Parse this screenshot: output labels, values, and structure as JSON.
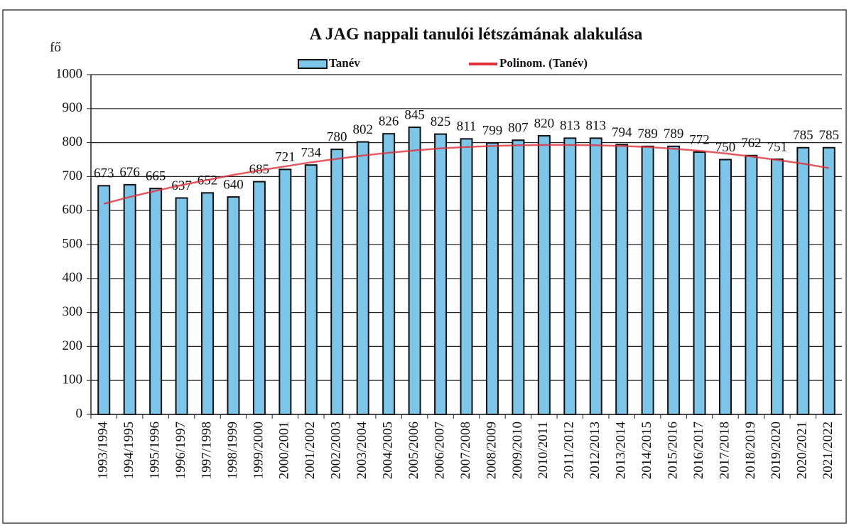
{
  "chart_data": {
    "type": "bar",
    "title": "A JAG nappali tanulói létszámának alakulása",
    "ylabel": "fő",
    "categories": [
      "1993/1994",
      "1994/1995",
      "1995/1996",
      "1996/1997",
      "1997/1998",
      "1998/1999",
      "1999/2000",
      "2000/2001",
      "2001/2002",
      "2002/2003",
      "2003/2004",
      "2004/2005",
      "2005/2006",
      "2006/2007",
      "2007/2008",
      "2008/2009",
      "2009/2010",
      "2010/2011",
      "2011/2012",
      "2012/2013",
      "2013/2014",
      "2014/2015",
      "2015/2016",
      "2016/2017",
      "2017/2018",
      "2018/2019",
      "2019/2020",
      "2020/2021",
      "2021/2022"
    ],
    "series": [
      {
        "name": "Tanév",
        "type": "bar",
        "color": "#7cc6ea",
        "values": [
          673,
          676,
          665,
          637,
          652,
          640,
          685,
          721,
          734,
          780,
          802,
          826,
          845,
          825,
          811,
          799,
          807,
          820,
          813,
          813,
          794,
          789,
          789,
          772,
          750,
          762,
          751,
          785,
          785
        ]
      },
      {
        "name": "Polinom. (Tanév)",
        "type": "line",
        "color": "#e0303a",
        "values": [
          620,
          640,
          658,
          675,
          690,
          705,
          718,
          730,
          742,
          752,
          762,
          770,
          777,
          783,
          787,
          790,
          792,
          793,
          793,
          792,
          790,
          787,
          782,
          776,
          768,
          759,
          749,
          738,
          725
        ]
      }
    ],
    "ylim": [
      0,
      1000
    ],
    "yticks": [
      0,
      100,
      200,
      300,
      400,
      500,
      600,
      700,
      800,
      900,
      1000
    ],
    "grid": true
  }
}
